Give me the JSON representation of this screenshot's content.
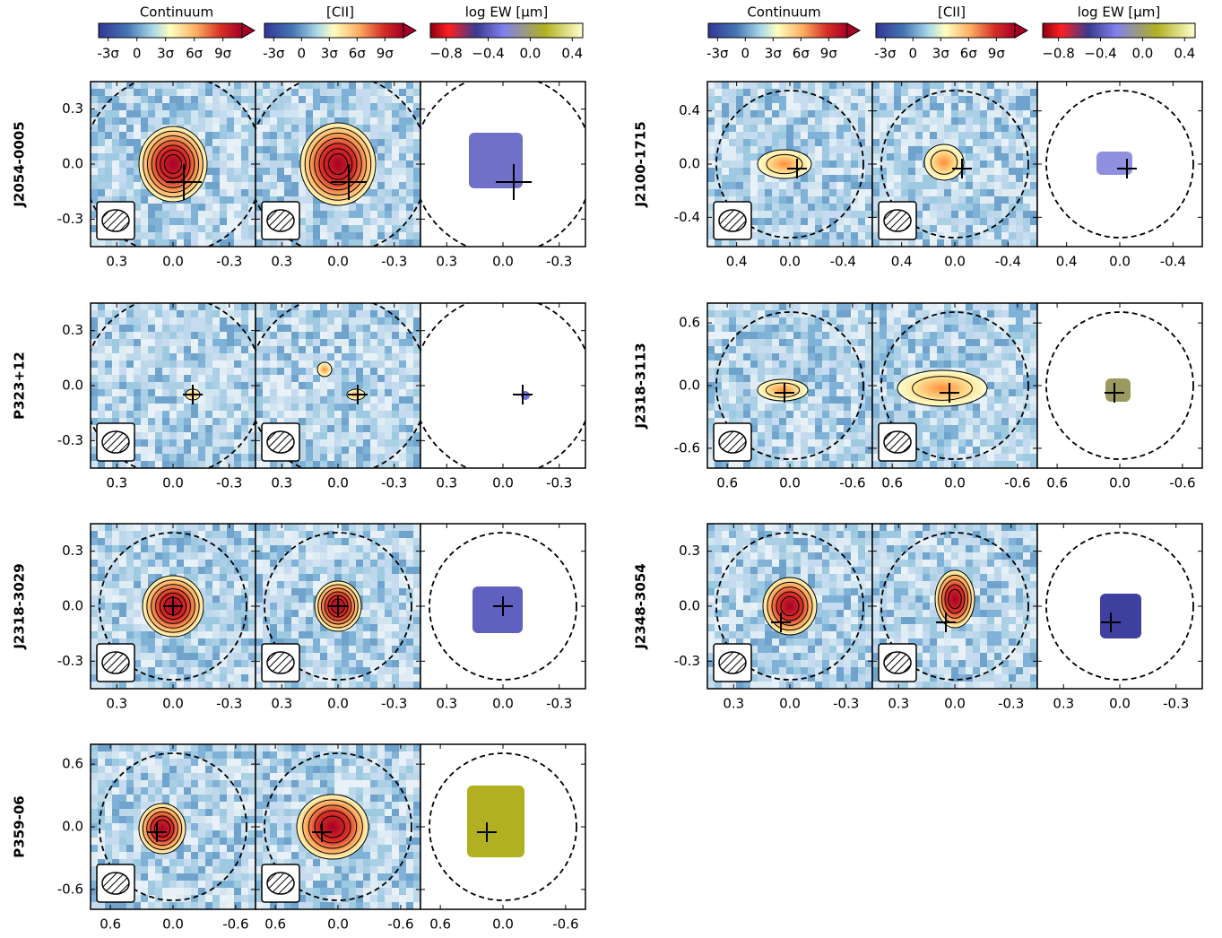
{
  "colorbars": [
    {
      "label": "Continuum",
      "clim": [
        -4,
        11
      ],
      "ticks": [
        {
          "value": -3,
          "label": "-3σ"
        },
        0,
        {
          "value": 3,
          "label": "3σ"
        },
        {
          "value": 6,
          "label": "6σ"
        },
        {
          "value": 9,
          "label": "9σ"
        }
      ]
    },
    {
      "label": "[CII]",
      "clim": [
        -4,
        11
      ],
      "ticks": [
        {
          "value": -3,
          "label": "-3σ"
        },
        0,
        {
          "value": 3,
          "label": "3σ"
        },
        {
          "value": 6,
          "label": "6σ"
        },
        {
          "value": 9,
          "label": "9σ"
        }
      ]
    },
    {
      "label": "log EW [μm]",
      "clim": [
        -0.95,
        0.5
      ],
      "ticks": [
        {
          "value": -0.8,
          "label": "−0.8"
        },
        {
          "value": -0.4,
          "label": "−0.4"
        },
        {
          "value": 0,
          "label": "0.0"
        },
        {
          "value": 0.4,
          "label": "0.4"
        }
      ]
    }
  ],
  "chart_data": [
    {
      "type": "map",
      "title": "J2054-0005",
      "xlim": [
        0.44,
        -0.44
      ],
      "ylim": [
        -0.45,
        0.45
      ],
      "xticks": [
        0.3,
        {
          "value": 0,
          "label": "0.0"
        },
        -0.3
      ],
      "yticks": [
        0.3,
        {
          "value": 0,
          "label": "0.0"
        },
        -0.3
      ]
    },
    {
      "type": "map",
      "title": "P323+12",
      "xlim": [
        0.44,
        -0.44
      ],
      "ylim": [
        -0.45,
        0.45
      ],
      "xticks": [
        0.3,
        {
          "value": 0,
          "label": "0.0"
        },
        -0.3
      ],
      "yticks": [
        0.3,
        {
          "value": 0,
          "label": "0.0"
        },
        -0.3
      ]
    },
    {
      "type": "map",
      "title": "J2318-3029",
      "xlim": [
        0.44,
        -0.44
      ],
      "ylim": [
        -0.45,
        0.45
      ],
      "xticks": [
        0.3,
        {
          "value": 0,
          "label": "0.0"
        },
        -0.3
      ],
      "yticks": [
        0.3,
        {
          "value": 0,
          "label": "0.0"
        },
        -0.3
      ]
    },
    {
      "type": "map",
      "title": "P359-06",
      "xlim": [
        0.79,
        -0.79
      ],
      "ylim": [
        -0.79,
        0.79
      ],
      "xticks": [
        0.6,
        {
          "value": 0,
          "label": "0.0"
        },
        -0.6
      ],
      "yticks": [
        0.6,
        {
          "value": 0,
          "label": "0.0"
        },
        -0.6
      ]
    },
    {
      "type": "map",
      "title": "J2100-1715",
      "xlim": [
        0.62,
        -0.62
      ],
      "ylim": [
        -0.62,
        0.62
      ],
      "xticks": [
        0.4,
        {
          "value": 0,
          "label": "0.0"
        },
        -0.4
      ],
      "yticks": [
        0.4,
        {
          "value": 0,
          "label": "0.0"
        },
        -0.4
      ]
    },
    {
      "type": "map",
      "title": "J2318-3113",
      "xlim": [
        0.79,
        -0.79
      ],
      "ylim": [
        -0.79,
        0.79
      ],
      "xticks": [
        0.6,
        {
          "value": 0,
          "label": "0.0"
        },
        -0.6
      ],
      "yticks": [
        0.6,
        {
          "value": 0,
          "label": "0.0"
        },
        -0.6
      ]
    },
    {
      "type": "map",
      "title": "J2348-3054",
      "xlim": [
        0.44,
        -0.44
      ],
      "ylim": [
        -0.45,
        0.45
      ],
      "xticks": [
        0.3,
        {
          "value": 0,
          "label": "0.0"
        },
        -0.3
      ],
      "yticks": [
        0.3,
        {
          "value": 0,
          "label": "0.0"
        },
        -0.3
      ]
    }
  ]
}
